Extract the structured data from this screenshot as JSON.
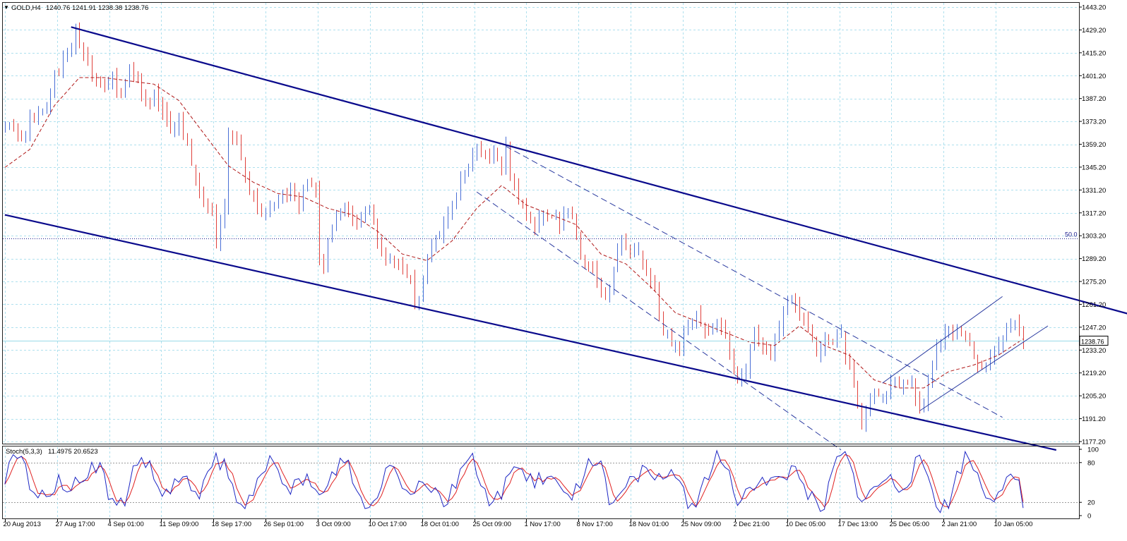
{
  "header": {
    "symbol": "GOLD,H4",
    "ohlc": "1240.76 1241.91 1238.38 1238.76",
    "menu_icon": "triangle-down-icon"
  },
  "stoch_header": {
    "label": "Stoch(5,3,3)",
    "values": "11.4975 20.6523"
  },
  "colors": {
    "bull": "#4a6fd6",
    "bear": "#e0413c",
    "ma": "#b01818",
    "channel": "#0a0a8c",
    "grid": "#aee0ee",
    "stoch_main": "#1d26c4",
    "stoch_signal": "#e02020",
    "current_price": "#9adbe8"
  },
  "chart_data": [
    {
      "type": "candlestick",
      "title": "GOLD,H4",
      "y_ticks": [
        "1443.20",
        "1429.20",
        "1415.20",
        "1401.20",
        "1387.20",
        "1373.20",
        "1359.20",
        "1345.20",
        "1331.20",
        "1317.20",
        "1303.20",
        "1289.20",
        "1275.20",
        "1261.20",
        "1247.20",
        "1233.20",
        "1219.20",
        "1205.20",
        "1191.20",
        "1177.20"
      ],
      "ylim": [
        1177.2,
        1443.2
      ],
      "x_ticks": [
        "20 Aug 2013",
        "27 Aug 17:00",
        "4 Sep 01:00",
        "11 Sep 09:00",
        "18 Sep 17:00",
        "26 Sep 01:00",
        "3 Oct 09:00",
        "10 Oct 17:00",
        "18 Oct 01:00",
        "25 Oct 09:00",
        "1 Nov 17:00",
        "8 Nov 17:00",
        "18 Nov 01:00",
        "25 Nov 09:00",
        "2 Dec 21:00",
        "10 Dec 05:00",
        "17 Dec 13:00",
        "25 Dec 05:00",
        "2 Jan 21:00",
        "10 Jan 05:00"
      ],
      "close_path": [
        [
          0,
          1369
        ],
        [
          2,
          1372
        ],
        [
          4,
          1360
        ],
        [
          6,
          1376
        ],
        [
          8,
          1378
        ],
        [
          10,
          1382
        ],
        [
          12,
          1401
        ],
        [
          14,
          1412
        ],
        [
          16,
          1420
        ],
        [
          17,
          1430
        ],
        [
          18,
          1418
        ],
        [
          20,
          1410
        ],
        [
          22,
          1395
        ],
        [
          24,
          1393
        ],
        [
          26,
          1400
        ],
        [
          28,
          1392
        ],
        [
          30,
          1410
        ],
        [
          31,
          1404
        ],
        [
          32,
          1396
        ],
        [
          34,
          1384
        ],
        [
          36,
          1390
        ],
        [
          38,
          1380
        ],
        [
          40,
          1368
        ],
        [
          42,
          1371
        ],
        [
          44,
          1358
        ],
        [
          46,
          1340
        ],
        [
          48,
          1322
        ],
        [
          50,
          1318
        ],
        [
          51,
          1300
        ],
        [
          52,
          1310
        ],
        [
          53,
          1322
        ],
        [
          54,
          1368
        ],
        [
          55,
          1366
        ],
        [
          57,
          1348
        ],
        [
          59,
          1330
        ],
        [
          61,
          1320
        ],
        [
          63,
          1316
        ],
        [
          65,
          1322
        ],
        [
          67,
          1326
        ],
        [
          69,
          1334
        ],
        [
          71,
          1324
        ],
        [
          73,
          1340
        ],
        [
          75,
          1330
        ],
        [
          76,
          1290
        ],
        [
          77,
          1285
        ],
        [
          78,
          1300
        ],
        [
          80,
          1314
        ],
        [
          82,
          1320
        ],
        [
          84,
          1310
        ],
        [
          86,
          1316
        ],
        [
          88,
          1320
        ],
        [
          90,
          1300
        ],
        [
          92,
          1290
        ],
        [
          94,
          1290
        ],
        [
          96,
          1280
        ],
        [
          98,
          1278
        ],
        [
          99,
          1260
        ],
        [
          100,
          1264
        ],
        [
          102,
          1290
        ],
        [
          104,
          1300
        ],
        [
          106,
          1310
        ],
        [
          108,
          1320
        ],
        [
          110,
          1336
        ],
        [
          112,
          1345
        ],
        [
          114,
          1356
        ],
        [
          116,
          1352
        ],
        [
          118,
          1356
        ],
        [
          120,
          1346
        ],
        [
          121,
          1358
        ],
        [
          122,
          1342
        ],
        [
          124,
          1326
        ],
        [
          126,
          1316
        ],
        [
          128,
          1310
        ],
        [
          130,
          1318
        ],
        [
          132,
          1314
        ],
        [
          134,
          1310
        ],
        [
          136,
          1320
        ],
        [
          138,
          1306
        ],
        [
          139,
          1288
        ],
        [
          141,
          1284
        ],
        [
          143,
          1276
        ],
        [
          145,
          1262
        ],
        [
          147,
          1286
        ],
        [
          149,
          1298
        ],
        [
          151,
          1290
        ],
        [
          153,
          1292
        ],
        [
          155,
          1282
        ],
        [
          157,
          1270
        ],
        [
          159,
          1245
        ],
        [
          161,
          1238
        ],
        [
          163,
          1235
        ],
        [
          165,
          1248
        ],
        [
          167,
          1252
        ],
        [
          169,
          1242
        ],
        [
          171,
          1245
        ],
        [
          173,
          1249
        ],
        [
          175,
          1230
        ],
        [
          177,
          1215
        ],
        [
          179,
          1222
        ],
        [
          181,
          1244
        ],
        [
          183,
          1238
        ],
        [
          185,
          1230
        ],
        [
          187,
          1245
        ],
        [
          189,
          1268
        ],
        [
          191,
          1260
        ],
        [
          193,
          1252
        ],
        [
          195,
          1240
        ],
        [
          196,
          1228
        ],
        [
          198,
          1238
        ],
        [
          200,
          1240
        ],
        [
          202,
          1242
        ],
        [
          204,
          1220
        ],
        [
          206,
          1200
        ],
        [
          207,
          1190
        ],
        [
          209,
          1205
        ],
        [
          211,
          1205
        ],
        [
          213,
          1208
        ],
        [
          215,
          1212
        ],
        [
          217,
          1214
        ],
        [
          219,
          1212
        ],
        [
          221,
          1199
        ],
        [
          222,
          1196
        ],
        [
          224,
          1226
        ],
        [
          226,
          1238
        ],
        [
          228,
          1245
        ],
        [
          230,
          1246
        ],
        [
          232,
          1240
        ],
        [
          234,
          1230
        ],
        [
          236,
          1220
        ],
        [
          238,
          1226
        ],
        [
          240,
          1236
        ],
        [
          242,
          1250
        ],
        [
          244,
          1252
        ],
        [
          246,
          1238
        ]
      ],
      "ma_path": [
        [
          0,
          1345
        ],
        [
          6,
          1356
        ],
        [
          12,
          1383
        ],
        [
          18,
          1400
        ],
        [
          24,
          1400
        ],
        [
          30,
          1398
        ],
        [
          36,
          1396
        ],
        [
          42,
          1386
        ],
        [
          48,
          1366
        ],
        [
          54,
          1346
        ],
        [
          60,
          1336
        ],
        [
          66,
          1329
        ],
        [
          72,
          1327
        ],
        [
          78,
          1320
        ],
        [
          84,
          1316
        ],
        [
          90,
          1306
        ],
        [
          96,
          1292
        ],
        [
          102,
          1288
        ],
        [
          108,
          1300
        ],
        [
          114,
          1320
        ],
        [
          120,
          1334
        ],
        [
          126,
          1322
        ],
        [
          132,
          1316
        ],
        [
          138,
          1310
        ],
        [
          144,
          1292
        ],
        [
          150,
          1286
        ],
        [
          156,
          1272
        ],
        [
          162,
          1256
        ],
        [
          168,
          1250
        ],
        [
          174,
          1244
        ],
        [
          180,
          1238
        ],
        [
          186,
          1236
        ],
        [
          192,
          1248
        ],
        [
          198,
          1236
        ],
        [
          204,
          1230
        ],
        [
          210,
          1215
        ],
        [
          216,
          1210
        ],
        [
          222,
          1210
        ],
        [
          228,
          1220
        ],
        [
          234,
          1224
        ],
        [
          240,
          1230
        ],
        [
          246,
          1240
        ]
      ],
      "channel_upper": [
        [
          16,
          1431
        ],
        [
          304,
          1233
        ]
      ],
      "channel_lower": [
        [
          0,
          1316
        ],
        [
          254,
          1172
        ]
      ],
      "inner_dashed_upper": [
        [
          121,
          1358
        ],
        [
          241,
          1192
        ]
      ],
      "inner_dashed_lower": [
        [
          114,
          1330
        ],
        [
          202,
          1172
        ]
      ],
      "rising_channel_upper": [
        [
          212,
          1213
        ],
        [
          241,
          1266
        ]
      ],
      "rising_channel_lower": [
        [
          221,
          1196
        ],
        [
          252,
          1248
        ]
      ],
      "fib_level": {
        "label": "50.0",
        "value": 1301.6
      },
      "current_price": {
        "label": "1238.76",
        "value": 1238.76
      }
    },
    {
      "type": "line",
      "title": "Stoch(5,3,3) 11.4975 20.6523",
      "y_ticks": [
        "100",
        "80",
        "20",
        "0"
      ],
      "ylim": [
        0,
        100
      ],
      "levels": [
        80,
        20
      ],
      "last_values": {
        "main": 11.4975,
        "signal": 20.6523
      }
    }
  ]
}
